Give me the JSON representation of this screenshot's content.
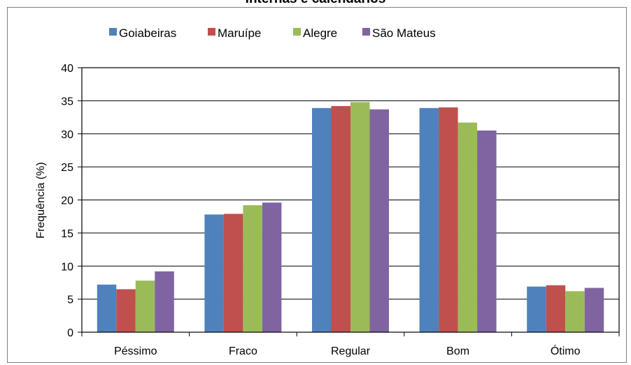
{
  "chart_data": {
    "type": "bar",
    "title": "Internas e calendários",
    "ylabel": "Frequência (%)",
    "xlabel": "",
    "ylim": [
      0,
      40
    ],
    "yticks": [
      0,
      5,
      10,
      15,
      20,
      25,
      30,
      35,
      40
    ],
    "grid": true,
    "legend_position": "top",
    "categories": [
      "Péssimo",
      "Fraco",
      "Regular",
      "Bom",
      "Ótimo"
    ],
    "series": [
      {
        "name": "Goiabeiras",
        "color": "#4f81bd",
        "values": [
          7.2,
          17.8,
          33.9,
          33.9,
          6.9
        ]
      },
      {
        "name": "Maruípe",
        "color": "#c0504d",
        "values": [
          6.5,
          17.9,
          34.2,
          34.0,
          7.1
        ]
      },
      {
        "name": "Alegre",
        "color": "#9bbb59",
        "values": [
          7.8,
          19.2,
          34.8,
          31.7,
          6.2
        ]
      },
      {
        "name": "São Mateus",
        "color": "#8064a2",
        "values": [
          9.2,
          19.6,
          33.7,
          30.5,
          6.7
        ]
      }
    ]
  }
}
